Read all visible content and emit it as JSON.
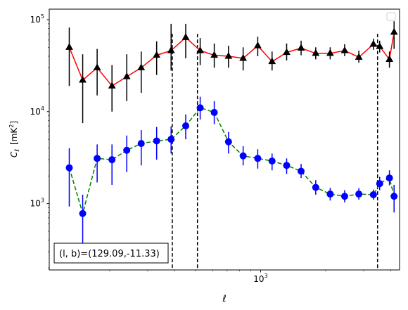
{
  "chart_data": {
    "type": "scatter",
    "title": "",
    "xlabel": "ℓ",
    "ylabel_main": "C",
    "ylabel_sub": "ℓ",
    "ylabel_unit": "[mK",
    "ylabel_unit_sup": "2",
    "ylabel_unit_end": "]",
    "xscale": "log",
    "yscale": "log",
    "xlim": [
      105,
      4400
    ],
    "ylim": [
      190,
      130000
    ],
    "x_ticks": [
      {
        "value": 1000,
        "base": "10",
        "exp": "3"
      }
    ],
    "y_ticks": [
      {
        "value": 1000,
        "base": "10",
        "exp": "3"
      },
      {
        "value": 10000,
        "base": "10",
        "exp": "4"
      },
      {
        "value": 100000,
        "base": "10",
        "exp": "5"
      }
    ],
    "vlines": [
      390,
      510,
      3480
    ],
    "legend_position": "top-right",
    "annotation": {
      "text": "(l, b)=(129.09,-11.33)",
      "position": "bottom-left"
    },
    "series": [
      {
        "marker": "triangle",
        "line_style": "solid",
        "line_color": "#ff0000",
        "marker_color": "#000000",
        "errorbar_color": "#000000",
        "points": [
          {
            "x": 130,
            "y": 50000,
            "lo": 19000,
            "hi": 82000
          },
          {
            "x": 150,
            "y": 22000,
            "lo": 7500,
            "hi": 42000
          },
          {
            "x": 175,
            "y": 30000,
            "lo": 15000,
            "hi": 48000
          },
          {
            "x": 205,
            "y": 19000,
            "lo": 10000,
            "hi": 32000
          },
          {
            "x": 240,
            "y": 24000,
            "lo": 13000,
            "hi": 42000
          },
          {
            "x": 280,
            "y": 30000,
            "lo": 16000,
            "hi": 45000
          },
          {
            "x": 330,
            "y": 41000,
            "lo": 25000,
            "hi": 58000
          },
          {
            "x": 385,
            "y": 46000,
            "lo": 28000,
            "hi": 90000
          },
          {
            "x": 450,
            "y": 64000,
            "lo": 38000,
            "hi": 90000
          },
          {
            "x": 525,
            "y": 46000,
            "lo": 32000,
            "hi": 63000
          },
          {
            "x": 610,
            "y": 41000,
            "lo": 30000,
            "hi": 55000
          },
          {
            "x": 710,
            "y": 40000,
            "lo": 30000,
            "hi": 52000
          },
          {
            "x": 830,
            "y": 38000,
            "lo": 28000,
            "hi": 50000
          },
          {
            "x": 970,
            "y": 52000,
            "lo": 40000,
            "hi": 65000
          },
          {
            "x": 1130,
            "y": 35000,
            "lo": 28000,
            "hi": 45000
          },
          {
            "x": 1320,
            "y": 44000,
            "lo": 36000,
            "hi": 55000
          },
          {
            "x": 1540,
            "y": 49000,
            "lo": 41000,
            "hi": 59000
          },
          {
            "x": 1800,
            "y": 43000,
            "lo": 37000,
            "hi": 50000
          },
          {
            "x": 2100,
            "y": 43000,
            "lo": 37000,
            "hi": 50000
          },
          {
            "x": 2450,
            "y": 46000,
            "lo": 40000,
            "hi": 54000
          },
          {
            "x": 2850,
            "y": 39000,
            "lo": 34000,
            "hi": 46000
          },
          {
            "x": 3330,
            "y": 54000,
            "lo": 47000,
            "hi": 62000
          },
          {
            "x": 3560,
            "y": 51000,
            "lo": 44000,
            "hi": 59000
          },
          {
            "x": 3950,
            "y": 37000,
            "lo": 30000,
            "hi": 45000
          },
          {
            "x": 4150,
            "y": 73000,
            "lo": 48000,
            "hi": 96000
          }
        ]
      },
      {
        "marker": "circle",
        "line_style": "dashed",
        "line_color": "#008000",
        "marker_color": "#0000ff",
        "errorbar_color": "#0000ff",
        "points": [
          {
            "x": 130,
            "y": 2450,
            "lo": 930,
            "hi": 4000
          },
          {
            "x": 150,
            "y": 780,
            "lo": 290,
            "hi": 1250
          },
          {
            "x": 175,
            "y": 3100,
            "lo": 1700,
            "hi": 4400
          },
          {
            "x": 205,
            "y": 3000,
            "lo": 1600,
            "hi": 4400
          },
          {
            "x": 240,
            "y": 3800,
            "lo": 2200,
            "hi": 5500
          },
          {
            "x": 280,
            "y": 4500,
            "lo": 2600,
            "hi": 6300
          },
          {
            "x": 330,
            "y": 4800,
            "lo": 3000,
            "hi": 6800
          },
          {
            "x": 385,
            "y": 5000,
            "lo": 3500,
            "hi": 6900
          },
          {
            "x": 450,
            "y": 7000,
            "lo": 5000,
            "hi": 9300
          },
          {
            "x": 525,
            "y": 11000,
            "lo": 8200,
            "hi": 14500
          },
          {
            "x": 610,
            "y": 9800,
            "lo": 7300,
            "hi": 13000
          },
          {
            "x": 710,
            "y": 4700,
            "lo": 3500,
            "hi": 6000
          },
          {
            "x": 830,
            "y": 3300,
            "lo": 2600,
            "hi": 4200
          },
          {
            "x": 970,
            "y": 3100,
            "lo": 2400,
            "hi": 3900
          },
          {
            "x": 1130,
            "y": 2900,
            "lo": 2300,
            "hi": 3500
          },
          {
            "x": 1320,
            "y": 2600,
            "lo": 2100,
            "hi": 3100
          },
          {
            "x": 1540,
            "y": 2250,
            "lo": 1900,
            "hi": 2700
          },
          {
            "x": 1800,
            "y": 1500,
            "lo": 1250,
            "hi": 1800
          },
          {
            "x": 2100,
            "y": 1270,
            "lo": 1080,
            "hi": 1480
          },
          {
            "x": 2450,
            "y": 1200,
            "lo": 1030,
            "hi": 1400
          },
          {
            "x": 2850,
            "y": 1270,
            "lo": 1100,
            "hi": 1470
          },
          {
            "x": 3330,
            "y": 1250,
            "lo": 1100,
            "hi": 1420
          },
          {
            "x": 3560,
            "y": 1650,
            "lo": 1400,
            "hi": 1950
          },
          {
            "x": 3950,
            "y": 1900,
            "lo": 1580,
            "hi": 2300
          },
          {
            "x": 4150,
            "y": 1200,
            "lo": 800,
            "hi": 1600
          }
        ]
      }
    ]
  }
}
